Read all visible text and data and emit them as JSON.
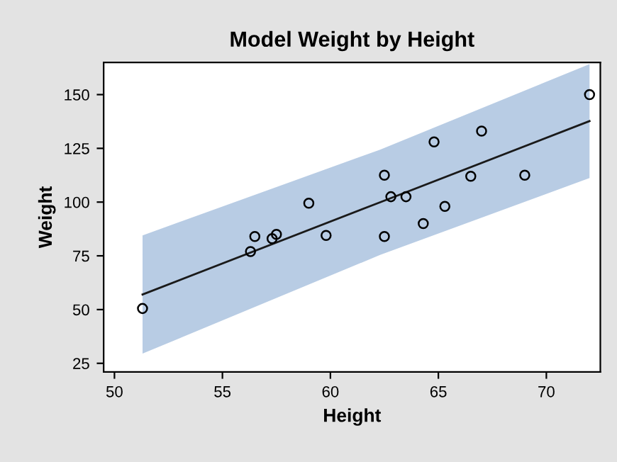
{
  "chart_data": {
    "type": "scatter",
    "title": "Model Weight by Height",
    "xlabel": "Height",
    "ylabel": "Weight",
    "xlim": [
      49.5,
      72.5
    ],
    "xticks": [
      50,
      55,
      60,
      65,
      70
    ],
    "ylim": [
      21,
      165
    ],
    "yticks": [
      25,
      50,
      75,
      100,
      125,
      150
    ],
    "grid": false,
    "legend": false,
    "series": [
      {
        "type": "line",
        "color": "#1a1a1a",
        "x": [
          51.3,
          62.3,
          72
        ],
        "values": [
          57.0,
          99.9,
          137.7
        ],
        "lower": [
          29.5,
          75.4,
          111.2
        ],
        "upper": [
          84.5,
          124.4,
          164.2
        ]
      },
      {
        "color": "#000000",
        "marker": "circle",
        "x": [
          69.0,
          56.5,
          65.3,
          62.8,
          63.5,
          57.3,
          59.8,
          62.5,
          62.5,
          59.0,
          51.3,
          64.3,
          56.3,
          66.5,
          72.0,
          64.8,
          67.0,
          57.5
        ],
        "values": [
          112.5,
          84.0,
          98.0,
          102.5,
          102.5,
          83.0,
          84.5,
          112.5,
          84.0,
          99.5,
          50.5,
          90.0,
          77.0,
          112.0,
          150.0,
          128.0,
          133.0,
          85.0
        ]
      }
    ]
  }
}
